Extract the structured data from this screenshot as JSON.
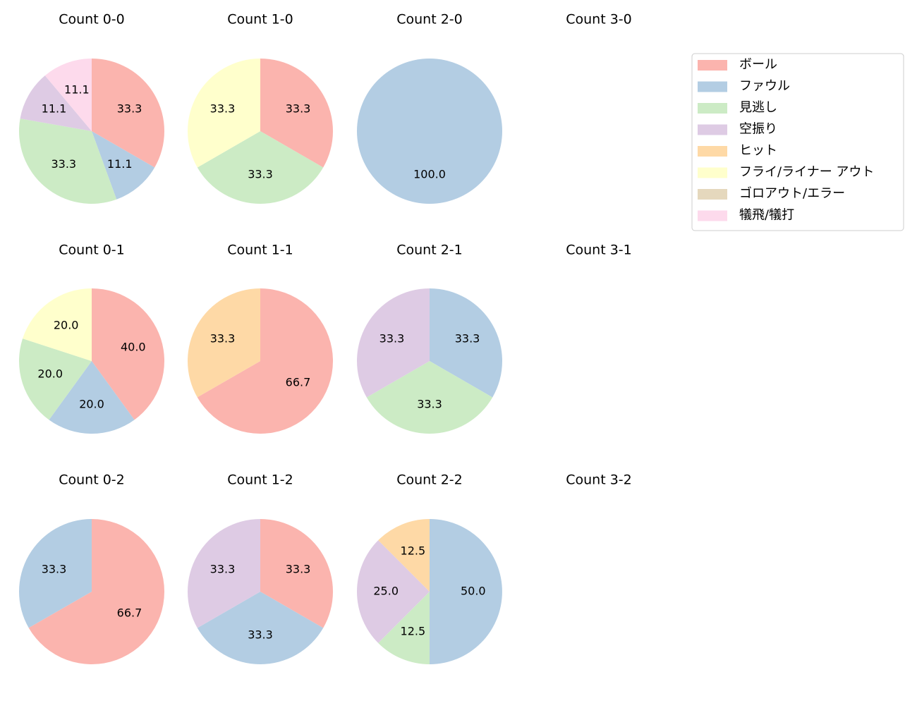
{
  "legend": {
    "labels": [
      "ボール",
      "ファウル",
      "見逃し",
      "空振り",
      "ヒット",
      "フライ/ライナー アウト",
      "ゴロアウト/エラー",
      "犠飛/犠打"
    ],
    "colors": [
      "#fbb4ae",
      "#b3cde3",
      "#ccebc5",
      "#decbe4",
      "#fed9a6",
      "#ffffcc",
      "#e5d8bd",
      "#fddaec"
    ],
    "position": "upper right"
  },
  "chart_data": [
    {
      "type": "pie",
      "title": "Count 0-0",
      "categories": [
        "ボール",
        "ファウル",
        "見逃し",
        "空振り",
        "犠飛/犠打"
      ],
      "values": [
        33.3,
        11.1,
        33.3,
        11.1,
        11.1
      ],
      "value_labels": [
        "33.3",
        "11.1",
        "33.3",
        "11.1",
        "11.1"
      ]
    },
    {
      "type": "pie",
      "title": "Count 1-0",
      "categories": [
        "ボール",
        "見逃し",
        "フライ/ライナー アウト"
      ],
      "values": [
        33.3,
        33.3,
        33.3
      ],
      "value_labels": [
        "33.3",
        "33.3",
        "33.3"
      ]
    },
    {
      "type": "pie",
      "title": "Count 2-0",
      "categories": [
        "ファウル"
      ],
      "values": [
        100
      ],
      "value_labels": [
        "100.0"
      ]
    },
    {
      "type": "pie",
      "title": "Count 3-0",
      "categories": [],
      "values": [],
      "value_labels": []
    },
    {
      "type": "pie",
      "title": "Count 0-1",
      "categories": [
        "ボール",
        "ファウル",
        "見逃し",
        "フライ/ライナー アウト"
      ],
      "values": [
        40,
        20,
        20,
        20
      ],
      "value_labels": [
        "40.0",
        "20.0",
        "20.0",
        "20.0"
      ]
    },
    {
      "type": "pie",
      "title": "Count 1-1",
      "categories": [
        "ボール",
        "ヒット"
      ],
      "values": [
        66.7,
        33.3
      ],
      "value_labels": [
        "66.7",
        "33.3"
      ]
    },
    {
      "type": "pie",
      "title": "Count 2-1",
      "categories": [
        "ファウル",
        "見逃し",
        "空振り"
      ],
      "values": [
        33.3,
        33.3,
        33.3
      ],
      "value_labels": [
        "33.3",
        "33.3",
        "33.3"
      ]
    },
    {
      "type": "pie",
      "title": "Count 3-1",
      "categories": [],
      "values": [],
      "value_labels": []
    },
    {
      "type": "pie",
      "title": "Count 0-2",
      "categories": [
        "ボール",
        "ファウル"
      ],
      "values": [
        66.7,
        33.3
      ],
      "value_labels": [
        "66.7",
        "33.3"
      ]
    },
    {
      "type": "pie",
      "title": "Count 1-2",
      "categories": [
        "ボール",
        "ファウル",
        "空振り"
      ],
      "values": [
        33.3,
        33.3,
        33.3
      ],
      "value_labels": [
        "33.3",
        "33.3",
        "33.3"
      ]
    },
    {
      "type": "pie",
      "title": "Count 2-2",
      "categories": [
        "ファウル",
        "見逃し",
        "空振り",
        "ヒット"
      ],
      "values": [
        50,
        12.5,
        25,
        12.5
      ],
      "value_labels": [
        "50.0",
        "12.5",
        "25.0",
        "12.5"
      ]
    },
    {
      "type": "pie",
      "title": "Count 3-2",
      "categories": [],
      "values": [],
      "value_labels": []
    }
  ]
}
